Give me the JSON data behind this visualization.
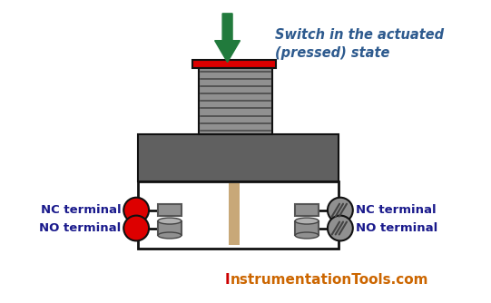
{
  "bg_color": "#ffffff",
  "title_I_color": "#cc0000",
  "title_rest_color": "#cc6600",
  "annotation_text": "Switch in the actuated\n(pressed) state",
  "annotation_color": "#2d5a8e",
  "nc_left": "NC terminal",
  "no_left": "NO terminal",
  "nc_right": "NC terminal",
  "no_right": "NO terminal",
  "label_color": "#1a1a8c",
  "arrow_color": "#217a3c",
  "body_dark": "#606060",
  "body_medium": "#909090",
  "body_light": "#b0b0b0",
  "stem_color": "#c8a878",
  "red_terminal": "#dd0000",
  "gray_terminal": "#909090",
  "red_hat_color": "#dd0000",
  "box_edge": "#111111",
  "white": "#ffffff"
}
